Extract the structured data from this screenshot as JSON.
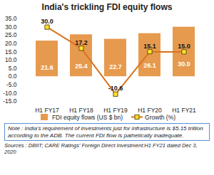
{
  "chart_data": {
    "type": "bar",
    "title": "India's trickling FDI equity flows",
    "categories": [
      "H1 FY17",
      "H1 FY18",
      "H1 FY19",
      "H1 FY20",
      "H1 FY21"
    ],
    "series": [
      {
        "name": "FDI equity flows (US $ bn)",
        "type": "bar",
        "color": "#e69a4e",
        "values": [
          21.6,
          25.4,
          22.7,
          26.1,
          30.0
        ],
        "value_labels": [
          "21.6",
          "25.4",
          "22.7",
          "26.1",
          "30.0"
        ]
      },
      {
        "name": "Growth (%)",
        "type": "line",
        "color": "#d9731f",
        "marker": "square",
        "values": [
          30.0,
          17.2,
          -10.6,
          15.1,
          15.0
        ],
        "value_labels": [
          "30.0",
          "17.2",
          "-10.6",
          "15.1",
          "15.0"
        ]
      }
    ],
    "ylim": [
      -15,
      35
    ],
    "yticks": [
      {
        "value": -15,
        "label": "-15.0"
      },
      {
        "value": -10,
        "label": "-10.0"
      },
      {
        "value": -5,
        "label": "-5.0"
      },
      {
        "value": 0,
        "label": "0.0"
      },
      {
        "value": 5,
        "label": "5.0"
      },
      {
        "value": 10,
        "label": "10.0"
      },
      {
        "value": 15,
        "label": "15.0"
      },
      {
        "value": 20,
        "label": "20.0"
      },
      {
        "value": 25,
        "label": "25.0"
      },
      {
        "value": 30,
        "label": "30.0"
      },
      {
        "value": 35,
        "label": "35.0"
      }
    ],
    "grid": false,
    "data_labels": true,
    "legend": "bottom",
    "note": "Note : India's requirement of investments just for infrastructure is $5.15 trillion according to the ADB. The current FDI flow is pathetically inadequate.",
    "sources": "Sources : DBIIT; CARE Ratings' Foreign Direct Investment:H1 FY21 dated Dec 3, 2020"
  }
}
